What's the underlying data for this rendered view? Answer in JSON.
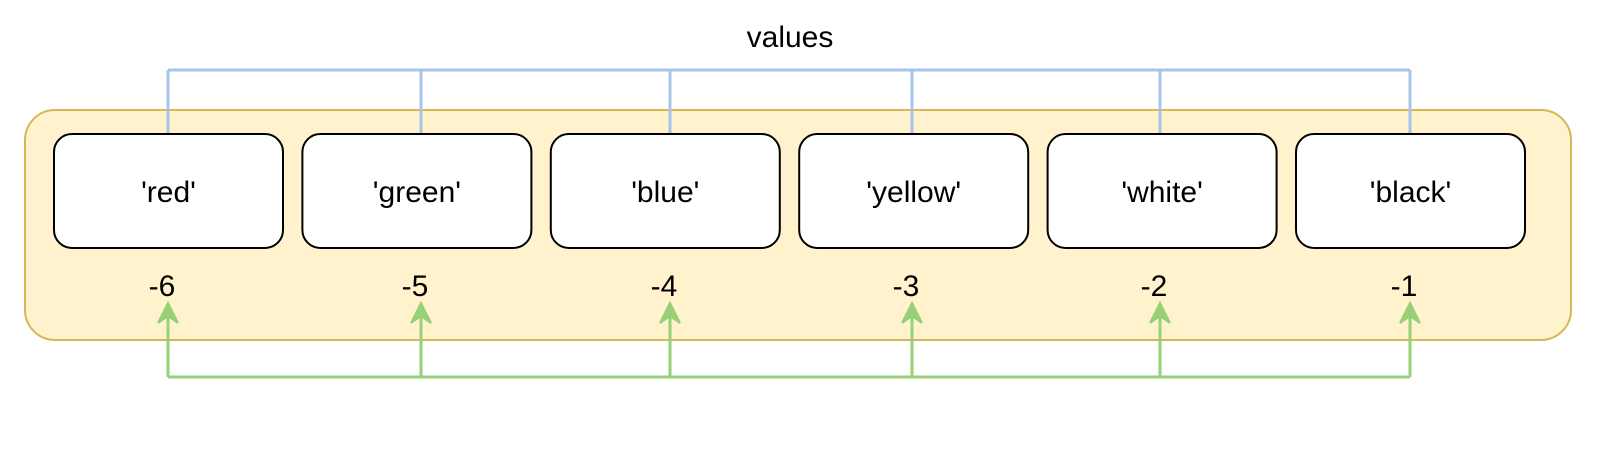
{
  "title": "values",
  "colors": {
    "container_fill": "#fff2cc",
    "container_stroke": "#d6b656",
    "cell_fill": "#ffffff",
    "cell_stroke": "#000000",
    "top_arrow": "#a9c4eb",
    "bottom_arrow": "#97d077"
  },
  "items": [
    {
      "value": "'red'",
      "index": "-6"
    },
    {
      "value": "'green'",
      "index": "-5"
    },
    {
      "value": "'blue'",
      "index": "-4"
    },
    {
      "value": "'yellow'",
      "index": "-3"
    },
    {
      "value": "'white'",
      "index": "-2"
    },
    {
      "value": "'black'",
      "index": "-1"
    }
  ]
}
